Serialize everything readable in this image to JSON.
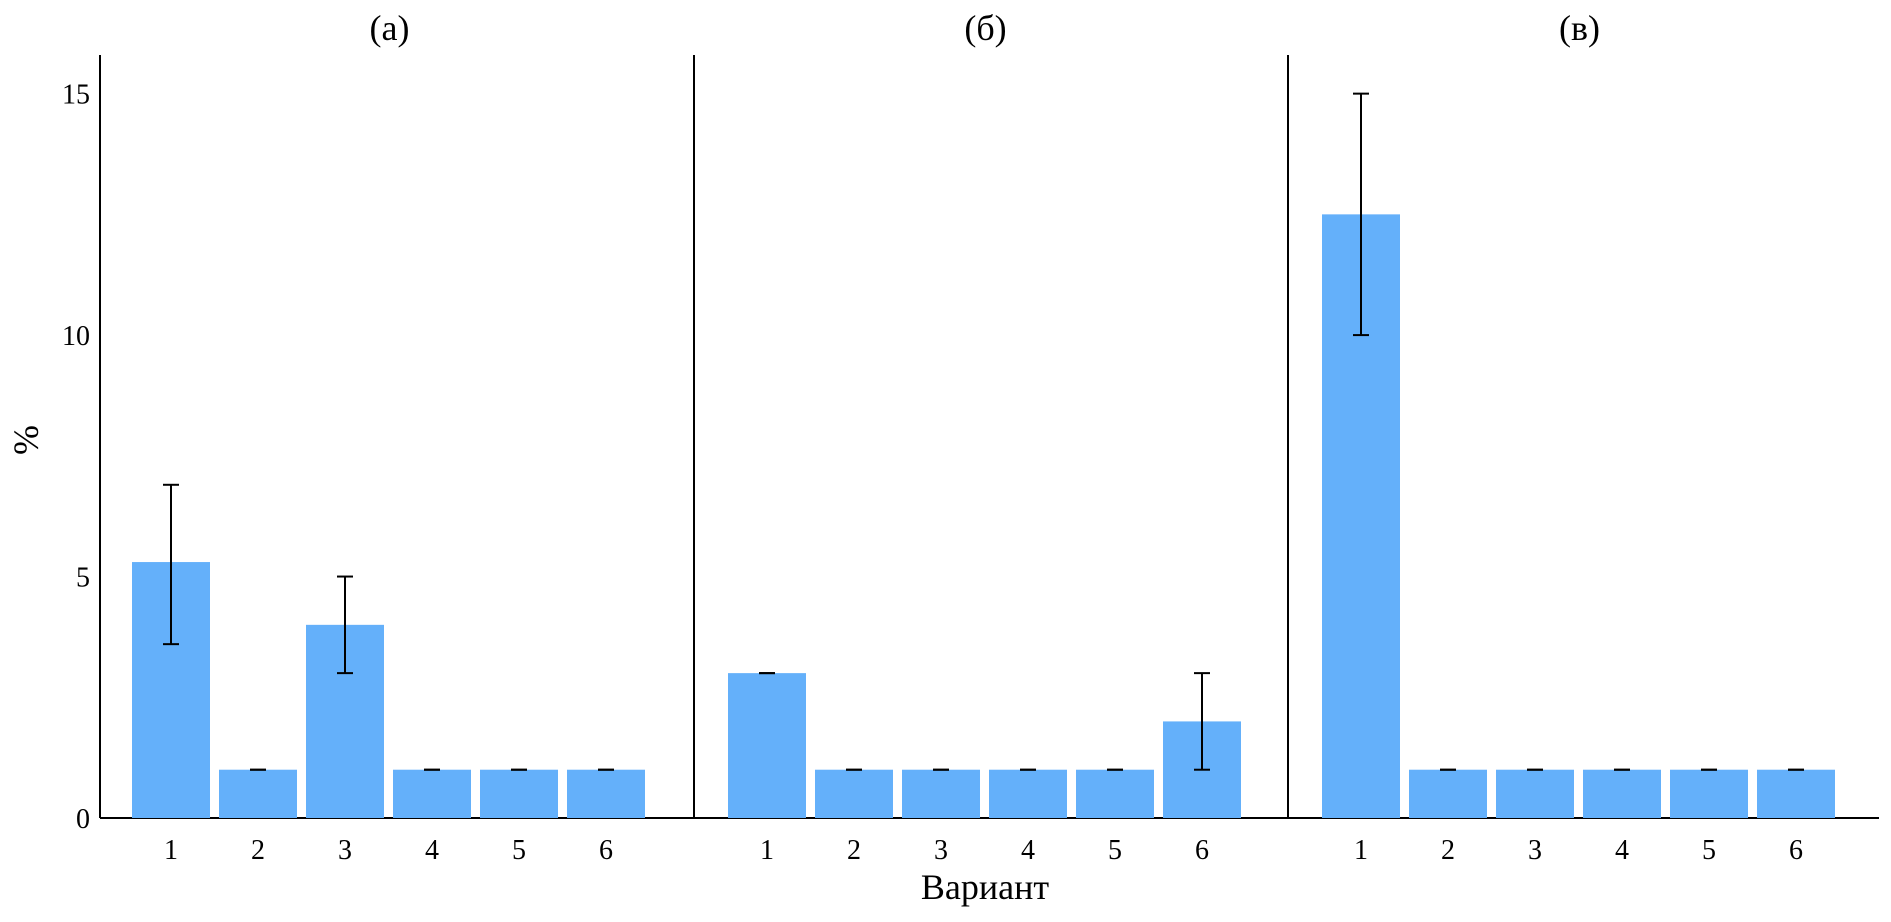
{
  "chart_data": {
    "type": "bar",
    "ylabel": "%",
    "xlabel": "Вариант",
    "ylim": [
      0,
      15.8
    ],
    "yticks": [
      0,
      5,
      10,
      15
    ],
    "bar_color": "#64b0fa",
    "errorbar_color": "#000000",
    "grid": false,
    "categories": [
      "1",
      "2",
      "3",
      "4",
      "5",
      "6"
    ],
    "panels": [
      {
        "title": "(а)",
        "values": [
          5.3,
          1.0,
          4.0,
          1.0,
          1.0,
          1.0
        ],
        "error_low": [
          3.6,
          1.0,
          3.0,
          1.0,
          1.0,
          1.0
        ],
        "error_high": [
          6.9,
          1.0,
          5.0,
          1.0,
          1.0,
          1.0
        ]
      },
      {
        "title": "(б)",
        "values": [
          3.0,
          1.0,
          1.0,
          1.0,
          1.0,
          2.0
        ],
        "error_low": [
          3.0,
          1.0,
          1.0,
          1.0,
          1.0,
          1.0
        ],
        "error_high": [
          3.0,
          1.0,
          1.0,
          1.0,
          1.0,
          3.0
        ]
      },
      {
        "title": "(в)",
        "values": [
          12.5,
          1.0,
          1.0,
          1.0,
          1.0,
          1.0
        ],
        "error_low": [
          10.0,
          1.0,
          1.0,
          1.0,
          1.0,
          1.0
        ],
        "error_high": [
          15.0,
          1.0,
          1.0,
          1.0,
          1.0,
          1.0
        ]
      }
    ]
  }
}
